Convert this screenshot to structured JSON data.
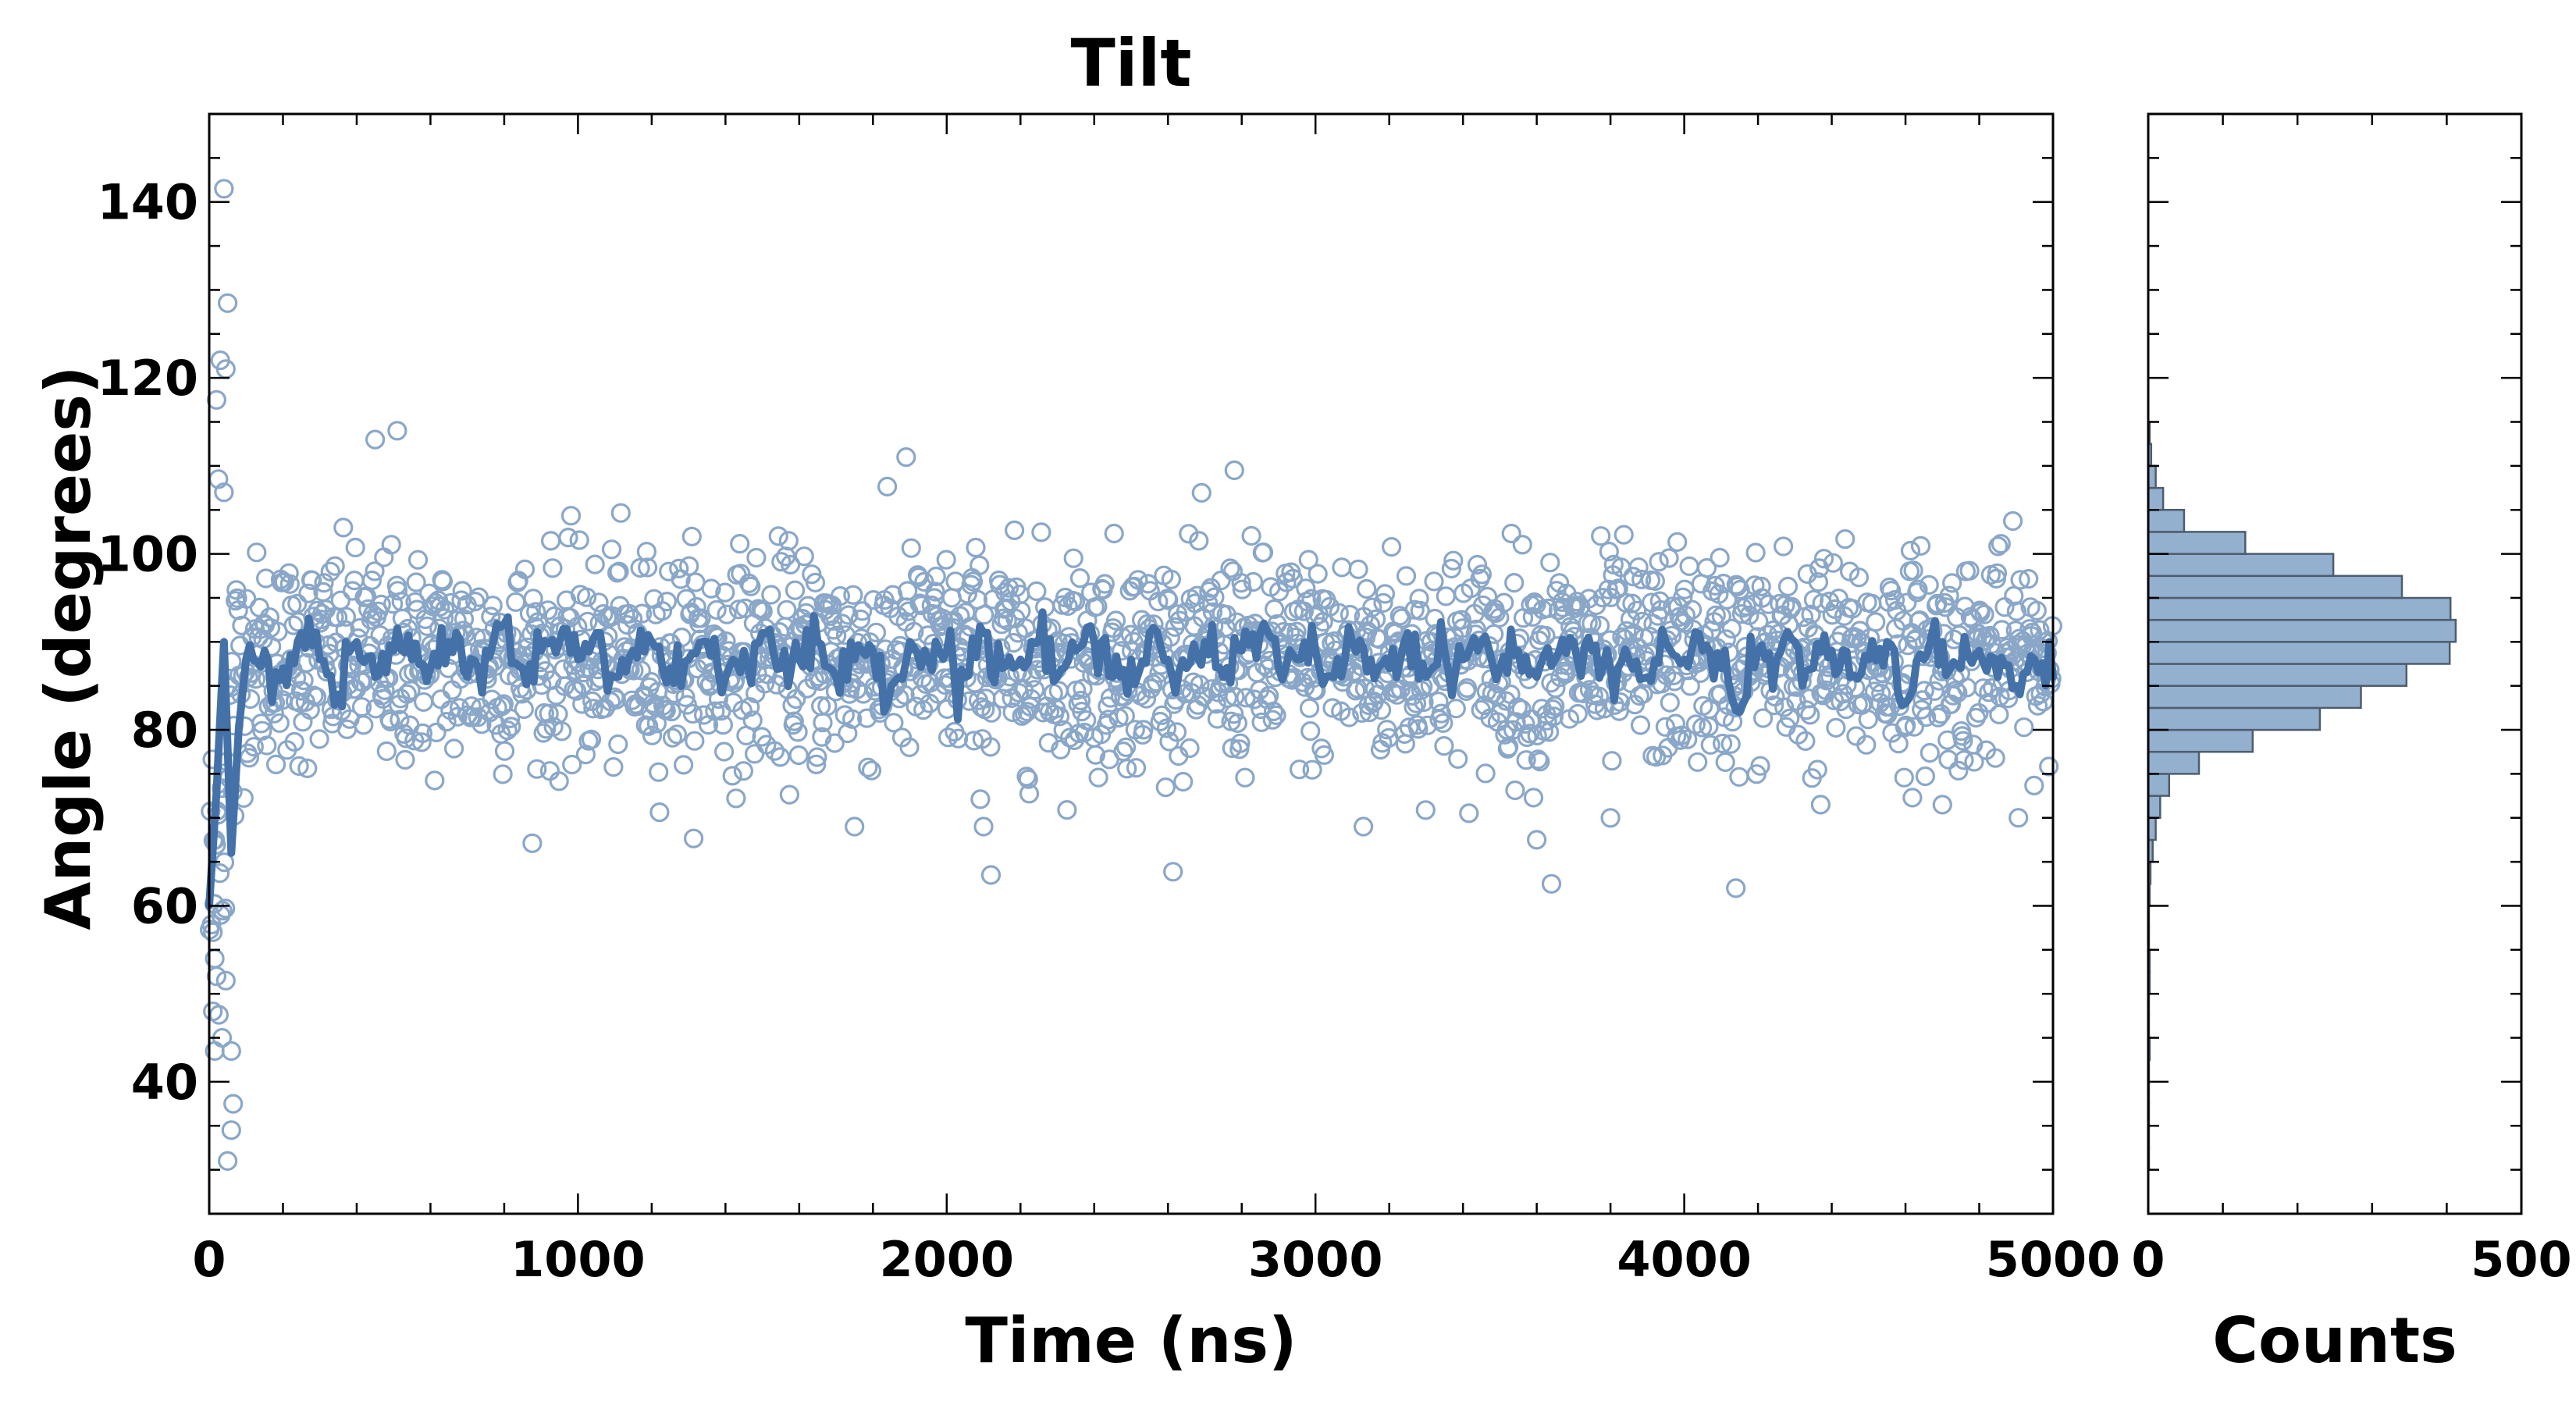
{
  "chart_data": [
    {
      "type": "scatter",
      "title": "Tilt",
      "xlabel": "Time (ns)",
      "ylabel": "Angle (degrees)",
      "xlim": [
        0,
        5000
      ],
      "ylim": [
        25,
        150
      ],
      "xticks": [
        "0",
        "1000",
        "2000",
        "3000",
        "4000",
        "5000"
      ],
      "yticks": [
        "40",
        "60",
        "80",
        "100",
        "120",
        "140"
      ],
      "grid": false,
      "series": [
        {
          "kind": "scatter-open-circles",
          "description_points": "Raw tilt angle sampled every ~2.5 ns (approx. 2000 samples), mean ~88 deg, sd ~6 deg; initial transient from ~60 deg with outliers up to ~141 deg and down to ~31 deg in the first 60 ns.",
          "mean": 88,
          "sd": 6,
          "n": 2000,
          "outliers": [
            {
              "x": 40,
              "y": 141.5
            },
            {
              "x": 50,
              "y": 128.5
            },
            {
              "x": 30,
              "y": 122
            },
            {
              "x": 45,
              "y": 121
            },
            {
              "x": 20,
              "y": 117.5
            },
            {
              "x": 25,
              "y": 108.5
            },
            {
              "x": 40,
              "y": 107
            },
            {
              "x": 10,
              "y": 57
            },
            {
              "x": 15,
              "y": 54
            },
            {
              "x": 20,
              "y": 52
            },
            {
              "x": 45,
              "y": 51.5
            },
            {
              "x": 10,
              "y": 48
            },
            {
              "x": 35,
              "y": 45
            },
            {
              "x": 15,
              "y": 43.5
            },
            {
              "x": 60,
              "y": 43.5
            },
            {
              "x": 65,
              "y": 37.5
            },
            {
              "x": 60,
              "y": 34.5
            },
            {
              "x": 50,
              "y": 31
            },
            {
              "x": 450,
              "y": 113
            },
            {
              "x": 510,
              "y": 114
            },
            {
              "x": 1890,
              "y": 111
            },
            {
              "x": 2780,
              "y": 109.5
            },
            {
              "x": 2120,
              "y": 63.5
            },
            {
              "x": 3640,
              "y": 62.5
            },
            {
              "x": 4140,
              "y": 62
            },
            {
              "x": 1750,
              "y": 69
            },
            {
              "x": 2100,
              "y": 69
            },
            {
              "x": 3130,
              "y": 69
            },
            {
              "x": 3600,
              "y": 67.5
            },
            {
              "x": 3800,
              "y": 70
            },
            {
              "x": 4700,
              "y": 71.5
            },
            {
              "x": 4370,
              "y": 71.5
            }
          ]
        },
        {
          "kind": "line",
          "description_points": "Running average of the tilt angle",
          "x": [
            0,
            20,
            40,
            60,
            80,
            100,
            150,
            200,
            250,
            300,
            350,
            400,
            450,
            500,
            550,
            600,
            650,
            700,
            750,
            800,
            850,
            900,
            950,
            1000,
            1050,
            1100,
            1150,
            1200,
            1250,
            1300,
            1350,
            1400,
            1450,
            1500,
            1550,
            1600,
            1650,
            1700,
            1750,
            1800,
            1850,
            1900,
            1950,
            2000,
            2050,
            2100,
            2150,
            2200,
            2250,
            2300,
            2350,
            2400,
            2450,
            2500,
            2550,
            2600,
            2650,
            2700,
            2750,
            2800,
            2850,
            2900,
            2950,
            3000,
            3050,
            3100,
            3150,
            3200,
            3250,
            3300,
            3350,
            3400,
            3450,
            3500,
            3550,
            3600,
            3650,
            3700,
            3750,
            3800,
            3850,
            3900,
            3950,
            4000,
            4050,
            4100,
            4150,
            4200,
            4250,
            4300,
            4350,
            4400,
            4450,
            4500,
            4550,
            4600,
            4650,
            4700,
            4750,
            4800,
            4850,
            4900,
            4950,
            5000
          ],
          "y": [
            60,
            73,
            90,
            66,
            80,
            88,
            89,
            87,
            91,
            88,
            84,
            90,
            86,
            89,
            88,
            87,
            90,
            86,
            89,
            92,
            87,
            89,
            90,
            88,
            91,
            86,
            89,
            90,
            87,
            88,
            90,
            86,
            89,
            91,
            87,
            88,
            90,
            86,
            88,
            89,
            85,
            90,
            88,
            89,
            86,
            91,
            87,
            88,
            90,
            86,
            89,
            90,
            86,
            88,
            91,
            88,
            87,
            90,
            86,
            89,
            91,
            87,
            88,
            89,
            86,
            90,
            88,
            87,
            91,
            86,
            89,
            88,
            90,
            87,
            89,
            86,
            88,
            90,
            89,
            87,
            88,
            86,
            90,
            88,
            89,
            87,
            82,
            89,
            88,
            90,
            87,
            89,
            86,
            88,
            90,
            83,
            88,
            90,
            87,
            89,
            86,
            85,
            88,
            86
          ],
          "color": "#4472a8"
        }
      ],
      "marker_color": "#8aa7c8",
      "line_color": "#4472a8"
    },
    {
      "type": "bar",
      "orientation": "horizontal",
      "xlabel": "Counts",
      "xlim": [
        0,
        500
      ],
      "xticks": [
        "0",
        "500"
      ],
      "bin_edges": [
        30,
        32.5,
        35,
        37.5,
        40,
        42.5,
        45,
        47.5,
        50,
        52.5,
        55,
        57.5,
        60,
        62.5,
        65,
        67.5,
        70,
        72.5,
        75,
        77.5,
        80,
        82.5,
        85,
        87.5,
        90,
        92.5,
        95,
        97.5,
        100,
        102.5,
        105,
        107.5,
        110,
        112.5,
        115
      ],
      "values": [
        1,
        1,
        1,
        1,
        1,
        2,
        1,
        1,
        2,
        2,
        1,
        1,
        2,
        3,
        6,
        10,
        16,
        28,
        68,
        140,
        230,
        285,
        346,
        404,
        412,
        405,
        340,
        248,
        130,
        48,
        20,
        10,
        4,
        2
      ],
      "color": "#93b0cf",
      "edge_color": "#4d5d6d"
    }
  ]
}
